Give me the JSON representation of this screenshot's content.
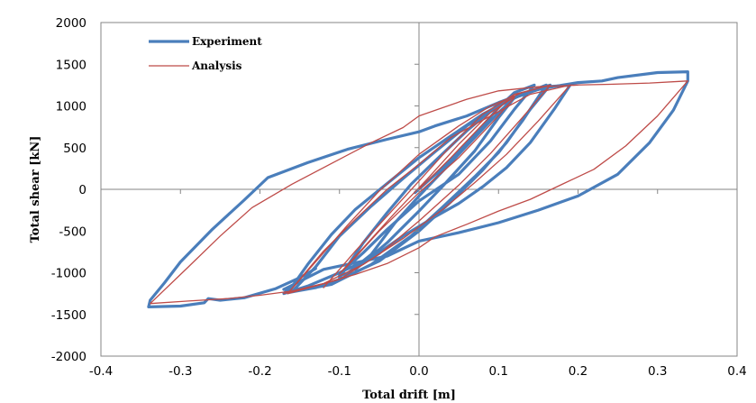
{
  "colors": {
    "experiment": "#4a7ebb",
    "analysis": "#be4b48",
    "axis": "#868686",
    "frame": "#868686"
  },
  "chart_data": {
    "type": "line",
    "xlabel": "Total drift [m]",
    "ylabel": "Total shear [kN]",
    "xlim": [
      -0.4,
      0.4
    ],
    "ylim": [
      -2000,
      2000
    ],
    "xticks": [
      -0.4,
      -0.3,
      -0.2,
      -0.1,
      0.0,
      0.1,
      0.2,
      0.3,
      0.4
    ],
    "xtick_labels": [
      "-0.4",
      "-0.3",
      "-0.2",
      "-0.1",
      "0.0",
      "0.1",
      "0.2",
      "0.3",
      "0.4"
    ],
    "yticks": [
      -2000,
      -1500,
      -1000,
      -500,
      0,
      500,
      1000,
      1500,
      2000
    ],
    "ytick_labels": [
      "-2000",
      "-1500",
      "-1000",
      "-500",
      "0",
      "500",
      "1000",
      "1500",
      "2000"
    ],
    "grid": false,
    "legend_position": "top-left",
    "series": [
      {
        "name": "Experiment",
        "color_key": "experiment",
        "stroke_width": 3.2,
        "loops": [
          [
            [
              -0.005,
              -40
            ],
            [
              0.03,
              260
            ],
            [
              0.06,
              560
            ],
            [
              0.08,
              760
            ],
            [
              0.1,
              980
            ],
            [
              0.12,
              1160
            ],
            [
              0.145,
              1250
            ],
            [
              0.12,
              960
            ],
            [
              0.09,
              580
            ],
            [
              0.05,
              180
            ],
            [
              0.0,
              -140
            ],
            [
              -0.04,
              -480
            ],
            [
              -0.07,
              -760
            ],
            [
              -0.09,
              -930
            ],
            [
              -0.1,
              -1030
            ],
            [
              -0.09,
              -1010
            ],
            [
              -0.06,
              -780
            ],
            [
              -0.03,
              -400
            ],
            [
              0.0,
              -80
            ],
            [
              0.03,
              220
            ],
            [
              0.07,
              620
            ],
            [
              0.1,
              920
            ],
            [
              0.12,
              1100
            ],
            [
              0.1,
              860
            ],
            [
              0.07,
              460
            ],
            [
              0.03,
              40
            ],
            [
              0.0,
              -260
            ],
            [
              -0.04,
              -640
            ],
            [
              -0.08,
              -960
            ]
          ],
          [
            [
              -0.1,
              -1060
            ],
            [
              -0.07,
              -640
            ],
            [
              -0.04,
              -280
            ],
            [
              -0.01,
              60
            ],
            [
              0.02,
              340
            ],
            [
              0.06,
              700
            ],
            [
              0.1,
              1020
            ],
            [
              0.14,
              1180
            ],
            [
              0.165,
              1250
            ],
            [
              0.14,
              960
            ],
            [
              0.11,
              560
            ],
            [
              0.08,
              230
            ],
            [
              0.04,
              -150
            ],
            [
              0.0,
              -500
            ],
            [
              -0.05,
              -860
            ],
            [
              -0.1,
              -1080
            ],
            [
              -0.13,
              -1180
            ],
            [
              -0.16,
              -1230
            ],
            [
              -0.13,
              -930
            ],
            [
              -0.1,
              -560
            ],
            [
              -0.06,
              -200
            ],
            [
              -0.02,
              130
            ],
            [
              0.02,
              450
            ],
            [
              0.06,
              760
            ],
            [
              0.1,
              1000
            ],
            [
              0.13,
              1140
            ],
            [
              0.16,
              1250
            ],
            [
              0.13,
              820
            ],
            [
              0.1,
              440
            ],
            [
              0.07,
              150
            ],
            [
              0.03,
              -210
            ],
            [
              -0.01,
              -560
            ],
            [
              -0.06,
              -900
            ],
            [
              -0.11,
              -1140
            ],
            [
              -0.165,
              -1240
            ]
          ],
          [
            [
              -0.165,
              -1240
            ],
            [
              -0.14,
              -900
            ],
            [
              -0.11,
              -540
            ],
            [
              -0.08,
              -240
            ],
            [
              -0.04,
              70
            ],
            [
              0.0,
              380
            ],
            [
              0.04,
              640
            ],
            [
              0.08,
              900
            ],
            [
              0.12,
              1100
            ],
            [
              0.16,
              1230
            ],
            [
              0.19,
              1250
            ],
            [
              0.17,
              960
            ],
            [
              0.14,
              560
            ],
            [
              0.11,
              260
            ],
            [
              0.08,
              30
            ],
            [
              0.05,
              -170
            ],
            [
              0.02,
              -330
            ],
            [
              -0.02,
              -560
            ],
            [
              -0.06,
              -820
            ],
            [
              -0.1,
              -1000
            ],
            [
              -0.14,
              -1160
            ],
            [
              -0.17,
              -1250
            ],
            [
              -0.16,
              -1160
            ],
            [
              -0.17,
              -1200
            ]
          ],
          [
            [
              -0.17,
              -1200
            ],
            [
              -0.12,
              -960
            ],
            [
              -0.08,
              -880
            ],
            [
              -0.04,
              -800
            ],
            [
              0.0,
              -620
            ],
            [
              0.05,
              -520
            ],
            [
              0.1,
              -400
            ],
            [
              0.15,
              -250
            ],
            [
              0.2,
              -80
            ],
            [
              0.25,
              180
            ],
            [
              0.29,
              560
            ],
            [
              0.32,
              950
            ],
            [
              0.338,
              1300
            ],
            [
              0.338,
              1410
            ],
            [
              0.3,
              1400
            ],
            [
              0.25,
              1340
            ],
            [
              0.23,
              1300
            ],
            [
              0.2,
              1280
            ],
            [
              0.18,
              1250
            ],
            [
              0.14,
              1180
            ],
            [
              0.1,
              1040
            ],
            [
              0.06,
              880
            ],
            [
              0.02,
              760
            ],
            [
              0.0,
              690
            ],
            [
              -0.04,
              600
            ],
            [
              -0.09,
              480
            ],
            [
              -0.14,
              320
            ],
            [
              -0.19,
              140
            ],
            [
              -0.22,
              -130
            ],
            [
              -0.26,
              -480
            ],
            [
              -0.3,
              -870
            ],
            [
              -0.32,
              -1120
            ],
            [
              -0.338,
              -1330
            ],
            [
              -0.34,
              -1410
            ],
            [
              -0.3,
              -1400
            ],
            [
              -0.27,
              -1360
            ],
            [
              -0.265,
              -1310
            ],
            [
              -0.25,
              -1330
            ],
            [
              -0.22,
              -1300
            ],
            [
              -0.18,
              -1190
            ],
            [
              -0.15,
              -1060
            ],
            [
              -0.13,
              -950
            ]
          ]
        ]
      },
      {
        "name": "Analysis",
        "color_key": "analysis",
        "stroke_width": 1.3,
        "loops": [
          [
            [
              0.0,
              0
            ],
            [
              0.04,
              380
            ],
            [
              0.08,
              780
            ],
            [
              0.11,
              1060
            ],
            [
              0.12,
              1100
            ],
            [
              0.09,
              780
            ],
            [
              0.05,
              380
            ],
            [
              0.0,
              -40
            ],
            [
              -0.05,
              -500
            ],
            [
              -0.09,
              -920
            ],
            [
              -0.1,
              -1010
            ],
            [
              -0.07,
              -700
            ],
            [
              -0.03,
              -280
            ],
            [
              0.01,
              120
            ],
            [
              0.05,
              540
            ],
            [
              0.09,
              920
            ],
            [
              0.12,
              1110
            ]
          ],
          [
            [
              -0.12,
              -1180
            ],
            [
              -0.08,
              -740
            ],
            [
              -0.04,
              -320
            ],
            [
              0.0,
              100
            ],
            [
              0.04,
              520
            ],
            [
              0.08,
              900
            ],
            [
              0.12,
              1140
            ],
            [
              0.165,
              1250
            ],
            [
              0.13,
              860
            ],
            [
              0.09,
              430
            ],
            [
              0.05,
              50
            ],
            [
              0.0,
              -380
            ],
            [
              -0.05,
              -780
            ],
            [
              -0.1,
              -1080
            ],
            [
              -0.165,
              -1250
            ],
            [
              -0.13,
              -870
            ],
            [
              -0.09,
              -430
            ],
            [
              -0.05,
              -20
            ],
            [
              0.0,
              420
            ],
            [
              0.05,
              760
            ],
            [
              0.09,
              1000
            ],
            [
              0.13,
              1160
            ],
            [
              0.165,
              1250
            ]
          ],
          [
            [
              -0.165,
              -1250
            ],
            [
              -0.12,
              -740
            ],
            [
              -0.08,
              -360
            ],
            [
              -0.04,
              0
            ],
            [
              0.0,
              300
            ],
            [
              0.04,
              620
            ],
            [
              0.09,
              880
            ],
            [
              0.14,
              1140
            ],
            [
              0.19,
              1250
            ],
            [
              0.15,
              820
            ],
            [
              0.11,
              420
            ],
            [
              0.07,
              80
            ],
            [
              0.03,
              -240
            ],
            [
              -0.02,
              -590
            ],
            [
              -0.07,
              -900
            ],
            [
              -0.12,
              -1130
            ],
            [
              -0.17,
              -1250
            ]
          ],
          [
            [
              0.19,
              1250
            ],
            [
              0.24,
              1260
            ],
            [
              0.29,
              1275
            ],
            [
              0.338,
              1300
            ],
            [
              0.3,
              880
            ],
            [
              0.26,
              520
            ],
            [
              0.22,
              240
            ],
            [
              0.18,
              60
            ],
            [
              0.14,
              -120
            ],
            [
              0.1,
              -260
            ],
            [
              0.06,
              -420
            ],
            [
              0.02,
              -570
            ],
            [
              0.0,
              -700
            ],
            [
              -0.04,
              -890
            ],
            [
              -0.08,
              -1020
            ],
            [
              -0.12,
              -1130
            ],
            [
              -0.16,
              -1220
            ],
            [
              -0.2,
              -1270
            ],
            [
              -0.24,
              -1310
            ],
            [
              -0.29,
              -1340
            ],
            [
              -0.338,
              -1370
            ],
            [
              -0.29,
              -930
            ],
            [
              -0.25,
              -560
            ],
            [
              -0.21,
              -220
            ],
            [
              -0.16,
              60
            ],
            [
              -0.11,
              310
            ],
            [
              -0.06,
              560
            ],
            [
              -0.02,
              740
            ],
            [
              0.0,
              880
            ],
            [
              0.03,
              980
            ],
            [
              0.06,
              1080
            ],
            [
              0.1,
              1180
            ],
            [
              0.15,
              1230
            ],
            [
              0.2,
              1250
            ]
          ]
        ]
      }
    ]
  }
}
